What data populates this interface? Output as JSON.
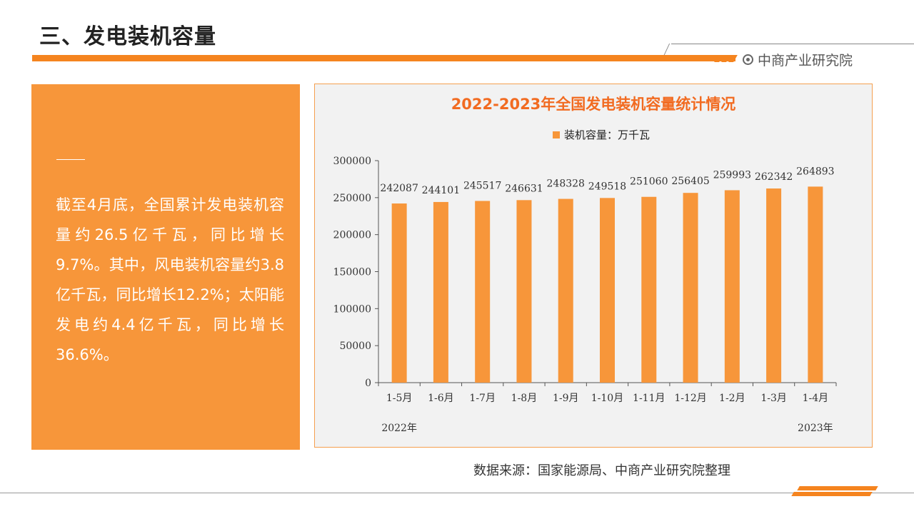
{
  "header": {
    "title": "三、发电装机容量",
    "brand": "中商产业研究院"
  },
  "summary": {
    "text": "截至4月底，全国累计发电装机容量约26.5亿千瓦，同比增长9.7%。其中，风电装机容量约3.8亿千瓦，同比增长12.2%；太阳能发电约4.4亿千瓦，同比增长36.6%。"
  },
  "colors": {
    "accent": "#f5841f",
    "bar": "#f7963a",
    "title": "#f26b21"
  },
  "source": "数据来源：国家能源局、中商产业研究院整理",
  "chart_data": {
    "type": "bar",
    "title": "2022-2023年全国发电装机容量统计情况",
    "categories": [
      "1-5月",
      "1-6月",
      "1-7月",
      "1-8月",
      "1-9月",
      "1-10月",
      "1-11月",
      "1-12月",
      "1-2月",
      "1-3月",
      "1-4月"
    ],
    "series": [
      {
        "name": "装机容量：万千瓦",
        "values": [
          242087,
          244101,
          245517,
          246631,
          248328,
          249518,
          251060,
          256405,
          259993,
          262342,
          264893
        ]
      }
    ],
    "ylim": [
      0,
      300000
    ],
    "yticks": [
      0,
      50000,
      100000,
      150000,
      200000,
      250000,
      300000
    ],
    "year_labels": [
      "2022年",
      "2023年"
    ],
    "grid": false,
    "legend_position": "top"
  }
}
